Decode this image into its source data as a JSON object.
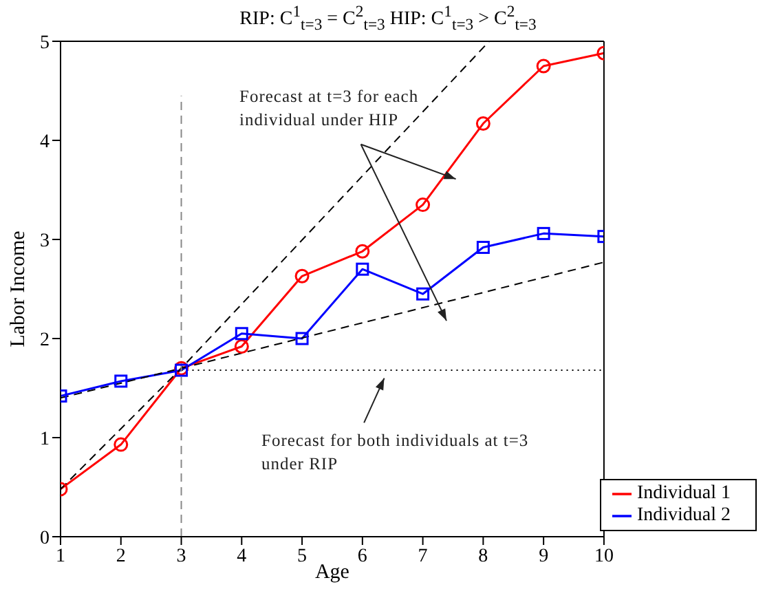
{
  "chart_data": {
    "type": "line",
    "title": "RIP: C$^{1}$$_{t=3}$ = C$^{2}$$_{t=3}$    HIP: C$^{1}$$_{t=3}$ > C$^{2}$$_{t=3}$",
    "xlabel": "Age",
    "ylabel": "Labor Income",
    "x": [
      1,
      2,
      3,
      4,
      5,
      6,
      7,
      8,
      9,
      10
    ],
    "xlim": [
      1,
      10
    ],
    "xticks": [
      1,
      2,
      3,
      4,
      5,
      6,
      7,
      8,
      9,
      10
    ],
    "ylim": [
      0,
      5
    ],
    "yticks": [
      0,
      1,
      2,
      3,
      4,
      5
    ],
    "legend": "bottom right",
    "annotations": [
      "Forecast at t=3 for each individual under HIP",
      "Forecast for both individuals at t=3 under RIP"
    ],
    "series": [
      {
        "name": "Individual 1",
        "color": "#ff0000",
        "marker": "circle",
        "line_style": "solid",
        "values": [
          0.48,
          0.93,
          1.7,
          1.92,
          2.63,
          2.88,
          3.35,
          4.17,
          4.75,
          4.88
        ]
      },
      {
        "name": "Individual 2",
        "color": "#0000ff",
        "marker": "square",
        "line_style": "solid",
        "values": [
          1.42,
          1.57,
          1.68,
          2.05,
          2.0,
          2.7,
          2.45,
          2.92,
          3.06,
          3.03
        ]
      },
      {
        "color": "#000000",
        "marker": "none",
        "line_style": "dashed",
        "x": [
          1,
          3,
          8.1
        ],
        "values": [
          0.48,
          1.7,
          5
        ]
      },
      {
        "color": "#000000",
        "marker": "none",
        "line_style": "dashed",
        "x": [
          1,
          3,
          10
        ],
        "values": [
          1.4,
          1.7,
          2.77
        ]
      },
      {
        "color": "#000000",
        "marker": "none",
        "line_style": "dotted",
        "x": [
          3,
          10
        ],
        "values": [
          1.68,
          1.68
        ]
      },
      {
        "color": "#888888",
        "marker": "none",
        "line_style": "dashed",
        "x": [
          3,
          3
        ],
        "values": [
          0,
          4.45
        ]
      }
    ]
  }
}
